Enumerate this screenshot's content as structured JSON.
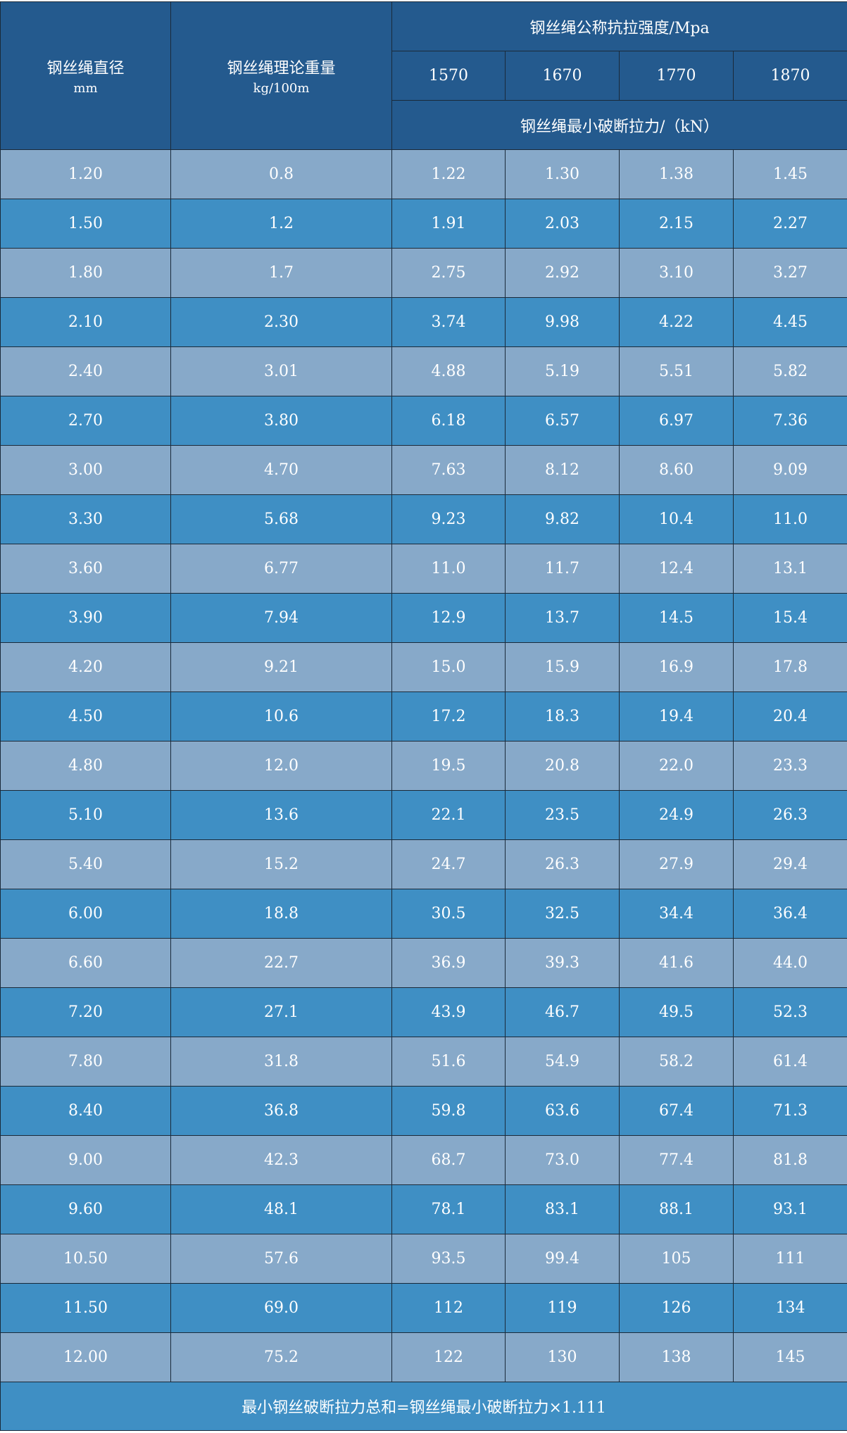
{
  "header": {
    "diameter_label": "钢丝绳直径",
    "diameter_unit": "mm",
    "weight_label": "钢丝绳理论重量",
    "weight_unit": "kg/100m",
    "strength_label": "钢丝绳公称抗拉强度/Mpa",
    "strengths": [
      "1570",
      "1670",
      "1770",
      "1870"
    ],
    "breaking_label": "钢丝绳最小破断拉力/（kN）"
  },
  "rows": [
    [
      "1.20",
      "0.8",
      "1.22",
      "1.30",
      "1.38",
      "1.45"
    ],
    [
      "1.50",
      "1.2",
      "1.91",
      "2.03",
      "2.15",
      "2.27"
    ],
    [
      "1.80",
      "1.7",
      "2.75",
      "2.92",
      "3.10",
      "3.27"
    ],
    [
      "2.10",
      "2.30",
      "3.74",
      "9.98",
      "4.22",
      "4.45"
    ],
    [
      "2.40",
      "3.01",
      "4.88",
      "5.19",
      "5.51",
      "5.82"
    ],
    [
      "2.70",
      "3.80",
      "6.18",
      "6.57",
      "6.97",
      "7.36"
    ],
    [
      "3.00",
      "4.70",
      "7.63",
      "8.12",
      "8.60",
      "9.09"
    ],
    [
      "3.30",
      "5.68",
      "9.23",
      "9.82",
      "10.4",
      "11.0"
    ],
    [
      "3.60",
      "6.77",
      "11.0",
      "11.7",
      "12.4",
      "13.1"
    ],
    [
      "3.90",
      "7.94",
      "12.9",
      "13.7",
      "14.5",
      "15.4"
    ],
    [
      "4.20",
      "9.21",
      "15.0",
      "15.9",
      "16.9",
      "17.8"
    ],
    [
      "4.50",
      "10.6",
      "17.2",
      "18.3",
      "19.4",
      "20.4"
    ],
    [
      "4.80",
      "12.0",
      "19.5",
      "20.8",
      "22.0",
      "23.3"
    ],
    [
      "5.10",
      "13.6",
      "22.1",
      "23.5",
      "24.9",
      "26.3"
    ],
    [
      "5.40",
      "15.2",
      "24.7",
      "26.3",
      "27.9",
      "29.4"
    ],
    [
      "6.00",
      "18.8",
      "30.5",
      "32.5",
      "34.4",
      "36.4"
    ],
    [
      "6.60",
      "22.7",
      "36.9",
      "39.3",
      "41.6",
      "44.0"
    ],
    [
      "7.20",
      "27.1",
      "43.9",
      "46.7",
      "49.5",
      "52.3"
    ],
    [
      "7.80",
      "31.8",
      "51.6",
      "54.9",
      "58.2",
      "61.4"
    ],
    [
      "8.40",
      "36.8",
      "59.8",
      "63.6",
      "67.4",
      "71.3"
    ],
    [
      "9.00",
      "42.3",
      "68.7",
      "73.0",
      "77.4",
      "81.8"
    ],
    [
      "9.60",
      "48.1",
      "78.1",
      "83.1",
      "88.1",
      "93.1"
    ],
    [
      "10.50",
      "57.6",
      "93.5",
      "99.4",
      "105",
      "111"
    ],
    [
      "11.50",
      "69.0",
      "112",
      "119",
      "126",
      "134"
    ],
    [
      "12.00",
      "75.2",
      "122",
      "130",
      "138",
      "145"
    ]
  ],
  "footer": "最小钢丝破断拉力总和=钢丝绳最小破断拉力×1.111",
  "colors": {
    "header": "#245a8e",
    "row_light": "#87a9c9",
    "row_dark": "#3f8fc4",
    "text": "#ffffff"
  }
}
